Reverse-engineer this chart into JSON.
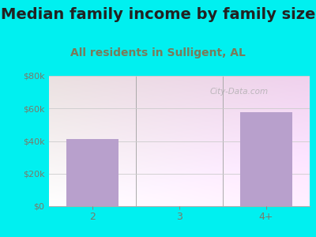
{
  "title": "Median family income by family size",
  "subtitle": "All residents in Sulligent, AL",
  "categories": [
    "2",
    "3",
    "4+"
  ],
  "values": [
    41000,
    0,
    57500
  ],
  "bar_color": "#b8a0cc",
  "background_outer": "#00f0f0",
  "background_inner_top_left": "#d8eeda",
  "background_inner_top_right": "#f0f8f0",
  "background_inner_bottom": "#ffffff",
  "title_color": "#222222",
  "subtitle_color": "#7a7a5a",
  "tick_label_color": "#7a7a6a",
  "ylim": [
    0,
    80000
  ],
  "yticks": [
    0,
    20000,
    40000,
    60000,
    80000
  ],
  "ytick_labels": [
    "$0",
    "$20k",
    "$40k",
    "$60k",
    "$80k"
  ],
  "watermark": "City-Data.com",
  "title_fontsize": 14,
  "subtitle_fontsize": 10
}
